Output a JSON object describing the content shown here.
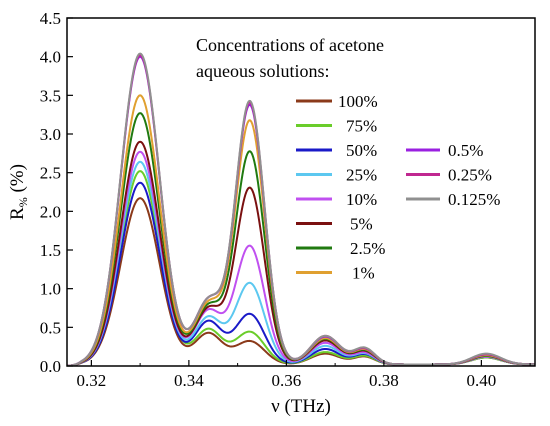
{
  "chart_data": {
    "type": "line",
    "title": "",
    "xlabel": "ν (THz)",
    "ylabel_main": "R",
    "ylabel_sub": "%",
    "ylabel_unit": " (%)",
    "xlim": [
      0.315,
      0.411
    ],
    "ylim": [
      0.0,
      4.5
    ],
    "x_ticks": [
      0.32,
      0.34,
      0.36,
      0.38,
      0.4
    ],
    "x_tick_labels": [
      "0.32",
      "0.34",
      "0.36",
      "0.38",
      "0.40"
    ],
    "y_ticks": [
      0.0,
      0.5,
      1.0,
      1.5,
      2.0,
      2.5,
      3.0,
      3.5,
      4.0,
      4.5
    ],
    "y_tick_labels": [
      "0.0",
      "0.5",
      "1.0",
      "1.5",
      "2.0",
      "2.5",
      "3.0",
      "3.5",
      "4.0",
      "4.5"
    ],
    "grid": false,
    "legend_title": [
      "Concentrations of acetone",
      "aqueous solutions:"
    ],
    "legend_placement": "top-right",
    "peak_positions_thz": [
      0.33,
      0.344,
      0.3525,
      0.368,
      0.376,
      0.401
    ],
    "series": [
      {
        "name": "100%",
        "color": "#8B3A1A",
        "peaks": [
          2.15,
          0.4,
          0.3,
          0.14,
          0.1,
          0.09
        ]
      },
      {
        "name": "75%",
        "color": "#6ACD2A",
        "peaks": [
          2.5,
          0.45,
          0.42,
          0.16,
          0.11,
          0.09
        ]
      },
      {
        "name": "50%",
        "color": "#1A1AC8",
        "peaks": [
          2.35,
          0.55,
          0.65,
          0.2,
          0.13,
          0.1
        ]
      },
      {
        "name": "25%",
        "color": "#5CC8F0",
        "peaks": [
          2.62,
          0.6,
          1.05,
          0.24,
          0.14,
          0.1
        ]
      },
      {
        "name": "10%",
        "color": "#C050F0",
        "peaks": [
          2.75,
          0.68,
          1.53,
          0.28,
          0.15,
          0.1
        ]
      },
      {
        "name": "5%",
        "color": "#7A1010",
        "peaks": [
          2.88,
          0.7,
          2.28,
          0.31,
          0.17,
          0.11
        ]
      },
      {
        "name": "2.5%",
        "color": "#207A10",
        "peaks": [
          3.25,
          0.73,
          2.75,
          0.33,
          0.18,
          0.11
        ]
      },
      {
        "name": "1%",
        "color": "#E0A030",
        "peaks": [
          3.48,
          0.76,
          3.15,
          0.34,
          0.19,
          0.12
        ]
      },
      {
        "name": "0.5%",
        "color": "#9A20E0",
        "peaks": [
          3.98,
          0.8,
          3.35,
          0.36,
          0.2,
          0.13
        ]
      },
      {
        "name": "0.25%",
        "color": "#C02890",
        "peaks": [
          4.0,
          0.8,
          3.38,
          0.37,
          0.2,
          0.13
        ]
      },
      {
        "name": "0.125%",
        "color": "#909090",
        "peaks": [
          4.02,
          0.8,
          3.4,
          0.37,
          0.21,
          0.14
        ]
      }
    ]
  }
}
